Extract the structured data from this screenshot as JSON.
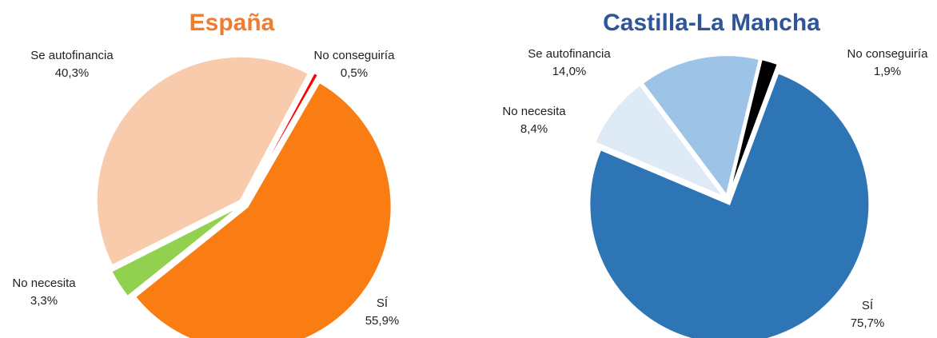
{
  "chart_data": [
    {
      "type": "pie",
      "title": "España",
      "title_color": "#ed7d31",
      "categories": [
        "SÍ",
        "No necesita",
        "Se autofinancia",
        "No conseguiría"
      ],
      "values": [
        55.9,
        3.3,
        40.3,
        0.5
      ],
      "value_labels": [
        "55,9%",
        "3,3%",
        "40,3%",
        "0,5%"
      ],
      "colors": [
        "#fa7d14",
        "#92d050",
        "#f8cbad",
        "#ff0000"
      ]
    },
    {
      "type": "pie",
      "title": "Castilla-La Mancha",
      "title_color": "#2f5597",
      "categories": [
        "SÍ",
        "No necesita",
        "Se autofinancia",
        "No conseguiría"
      ],
      "values": [
        75.7,
        8.4,
        14.0,
        1.9
      ],
      "value_labels": [
        "75,7%",
        "8,4%",
        "14,0%",
        "1,9%"
      ],
      "colors": [
        "#2e75b6",
        "#deebf7",
        "#9dc3e6",
        "#000000"
      ]
    }
  ]
}
